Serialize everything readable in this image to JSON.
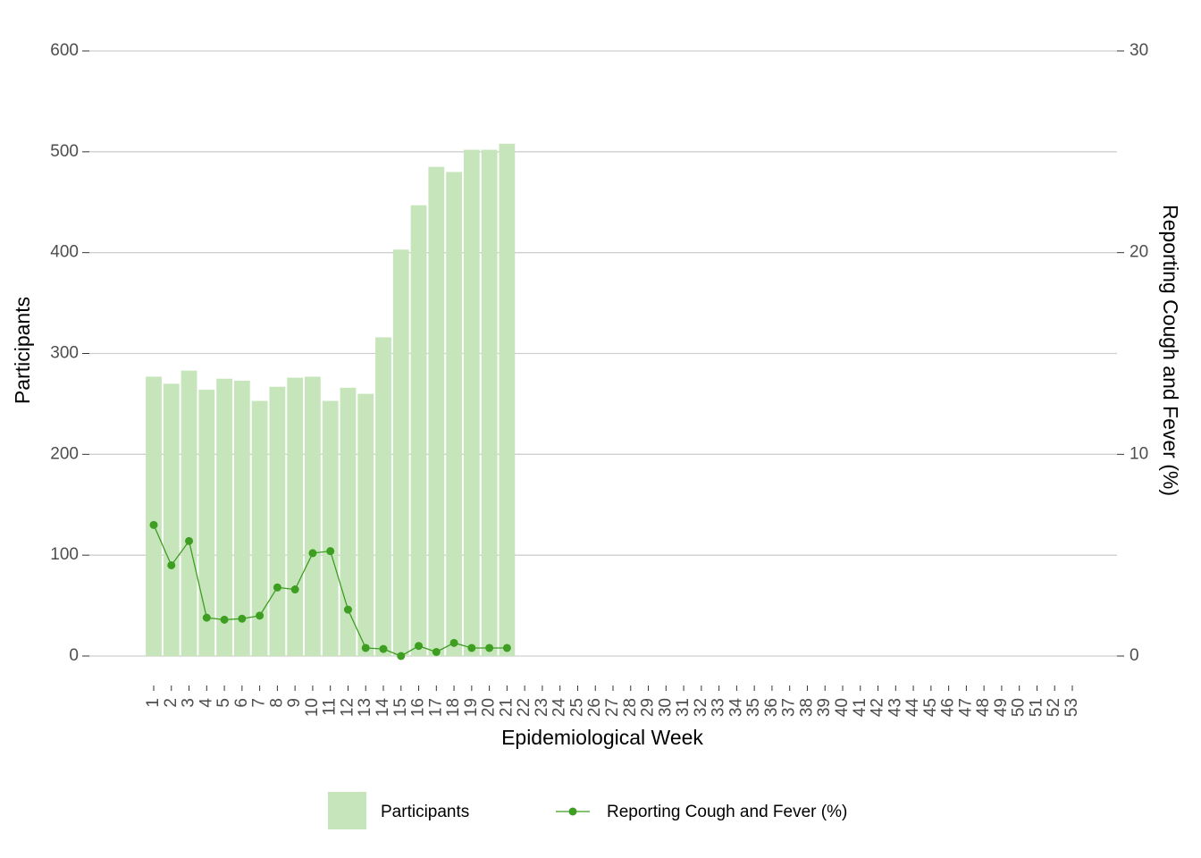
{
  "chart_data": {
    "type": "bar_line",
    "xlabel": "Epidemiological Week",
    "ylabel": "Participants",
    "y2label": "Reporting Cough and Fever (%)",
    "categories": [
      "1",
      "2",
      "3",
      "4",
      "5",
      "6",
      "7",
      "8",
      "9",
      "10",
      "11",
      "12",
      "13",
      "14",
      "15",
      "16",
      "17",
      "18",
      "19",
      "20",
      "21",
      "22",
      "23",
      "24",
      "25",
      "26",
      "27",
      "28",
      "29",
      "30",
      "31",
      "32",
      "33",
      "34",
      "35",
      "36",
      "37",
      "38",
      "39",
      "40",
      "41",
      "42",
      "43",
      "44",
      "45",
      "46",
      "47",
      "48",
      "49",
      "50",
      "51",
      "52",
      "53"
    ],
    "series": [
      {
        "name": "Participants",
        "type": "bar",
        "color": "#c7e5bb",
        "values": [
          277,
          270,
          283,
          264,
          275,
          273,
          253,
          267,
          276,
          277,
          253,
          266,
          260,
          316,
          403,
          447,
          485,
          480,
          502,
          502,
          508,
          null,
          null,
          null,
          null,
          null,
          null,
          null,
          null,
          null,
          null,
          null,
          null,
          null,
          null,
          null,
          null,
          null,
          null,
          null,
          null,
          null,
          null,
          null,
          null,
          null,
          null,
          null,
          null,
          null,
          null,
          null,
          null
        ]
      },
      {
        "name": "Reporting Cough and Fever (%)",
        "type": "line",
        "axis": "y2",
        "color": "#3d9e22",
        "values": [
          6.5,
          4.5,
          5.7,
          1.9,
          1.8,
          1.85,
          2.0,
          3.4,
          3.3,
          5.1,
          5.2,
          2.3,
          0.4,
          0.35,
          0,
          0.5,
          0.2,
          0.65,
          0.4,
          0.4,
          0.4,
          null,
          null,
          null,
          null,
          null,
          null,
          null,
          null,
          null,
          null,
          null,
          null,
          null,
          null,
          null,
          null,
          null,
          null,
          null,
          null,
          null,
          null,
          null,
          null,
          null,
          null,
          null,
          null,
          null,
          null,
          null,
          null
        ]
      }
    ],
    "ylim": [
      0,
      600
    ],
    "yticks": [
      0,
      100,
      200,
      300,
      400,
      500,
      600
    ],
    "y2lim": [
      0,
      30
    ],
    "y2ticks": [
      0,
      10,
      20,
      30
    ],
    "grid": true,
    "legend": "bottom"
  }
}
